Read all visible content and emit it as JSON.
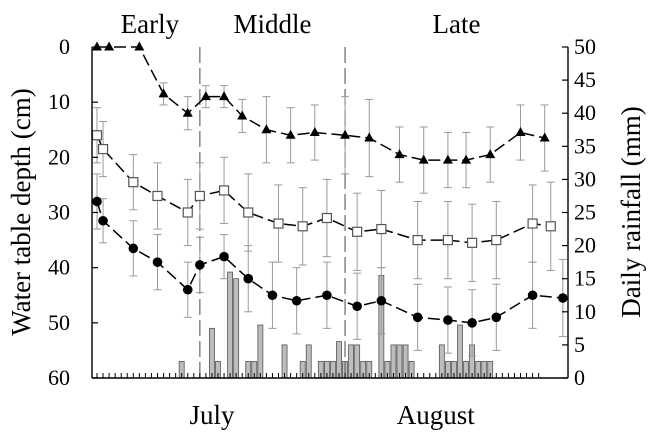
{
  "chart_data": {
    "type": "line",
    "periods": [
      "Early",
      "Middle",
      "Late"
    ],
    "months": [
      "July",
      "August"
    ],
    "ylabel": "Water table depth (cm)",
    "y2label": "Daily rainfall (mm)",
    "ylim": [
      0,
      60
    ],
    "y_inverted": true,
    "yticks": [
      0,
      10,
      20,
      30,
      40,
      50,
      60
    ],
    "y2lim": [
      0,
      50
    ],
    "y2ticks": [
      0,
      5,
      10,
      15,
      20,
      25,
      30,
      35,
      40,
      45,
      50
    ],
    "xlim": [
      0,
      73
    ],
    "period_boundaries": [
      17,
      41
    ],
    "month_positions": [
      19,
      56
    ],
    "series": [
      {
        "marker": "triangle",
        "x": [
          0,
          2,
          7,
          11,
          15,
          18,
          21,
          24,
          28,
          32,
          36,
          41,
          45,
          50,
          54,
          58,
          61,
          65,
          70,
          74
        ],
        "values": [
          0,
          0,
          0,
          8.5,
          12,
          9,
          9,
          12.5,
          15,
          16,
          15.5,
          16,
          16.5,
          19.5,
          20.5,
          20.5,
          20.5,
          19.5,
          15.5,
          16.5
        ],
        "err": [
          0,
          0,
          0,
          2,
          3,
          2,
          2,
          3,
          6,
          5,
          5,
          7,
          7,
          5,
          6,
          5,
          5,
          5,
          5,
          6
        ]
      },
      {
        "marker": "square",
        "x": [
          0,
          1,
          6,
          10,
          15,
          17,
          21,
          25,
          30,
          34,
          38,
          43,
          47,
          53,
          58,
          62,
          66,
          72,
          75
        ],
        "values": [
          16,
          18.5,
          24.5,
          27,
          30,
          27,
          26,
          30,
          32,
          32.5,
          31,
          33.5,
          33,
          35,
          35,
          35.5,
          35,
          32,
          32.5
        ],
        "err": [
          5,
          5,
          5,
          6,
          6,
          6,
          6,
          7,
          7,
          7,
          7,
          7,
          7,
          7,
          7,
          7,
          7,
          7,
          8
        ]
      },
      {
        "marker": "circle",
        "x": [
          0,
          1,
          6,
          10,
          15,
          17,
          21,
          25,
          29,
          33,
          38,
          43,
          47,
          53,
          58,
          62,
          66,
          72,
          77
        ],
        "values": [
          28,
          31.5,
          36.5,
          39,
          44,
          39.5,
          38,
          42,
          45,
          46,
          45,
          47,
          46,
          49,
          49.5,
          50,
          49,
          45,
          45.5
        ],
        "err": [
          5,
          4,
          5,
          5,
          5,
          5,
          4,
          6,
          6,
          6,
          6,
          6,
          6,
          6,
          6,
          6,
          6,
          6,
          7
        ]
      }
    ],
    "rainfall": {
      "x": [
        14,
        19,
        20,
        22,
        23,
        25,
        26,
        27,
        31,
        34,
        35,
        37,
        38,
        39,
        40,
        41,
        42,
        43,
        44,
        45,
        47,
        48,
        49,
        50,
        51,
        52,
        57,
        58,
        59,
        60,
        61,
        62,
        63,
        64,
        65
      ],
      "values": [
        2.5,
        7.5,
        2.5,
        16,
        15,
        2.5,
        2.5,
        8,
        5,
        2.5,
        5,
        2.5,
        2.5,
        2.5,
        5.5,
        2.5,
        5,
        5,
        2.5,
        2.5,
        15.5,
        2.5,
        5,
        5,
        5,
        2.5,
        5,
        2.5,
        2.5,
        8,
        2.5,
        5,
        2.5,
        2.5,
        2.5
      ]
    }
  }
}
